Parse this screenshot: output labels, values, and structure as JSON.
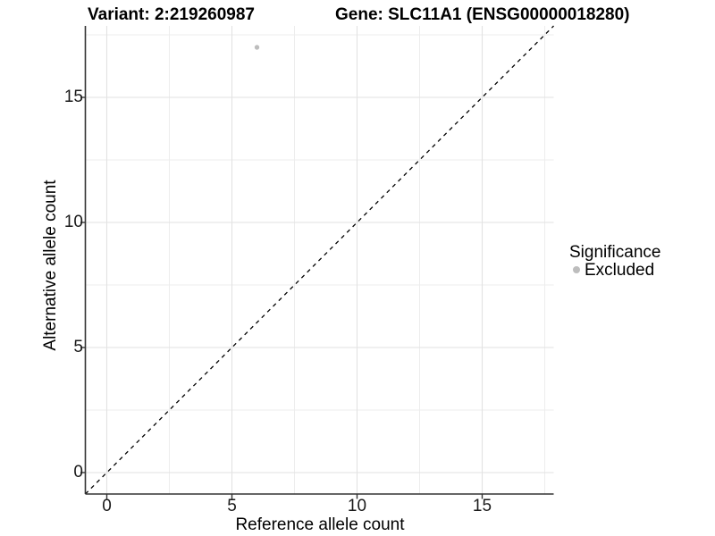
{
  "figure": {
    "title_left": "Variant: 2:219260987",
    "title_right": "Gene: SLC11A1 (ENSG00000018280)"
  },
  "chart_data": {
    "type": "scatter",
    "title_left": "Variant: 2:219260987",
    "title_right": "Gene: SLC11A1 (ENSG00000018280)",
    "xlabel": "Reference allele count",
    "ylabel": "Alternative allele count",
    "xlim": [
      -0.857,
      17.857
    ],
    "ylim": [
      -0.857,
      17.857
    ],
    "x_ticks": [
      0,
      5,
      10,
      15
    ],
    "y_ticks": [
      0,
      5,
      10,
      15
    ],
    "x_minor_ticks": [
      2.5,
      7.5,
      12.5,
      17.5
    ],
    "y_minor_ticks": [
      2.5,
      7.5,
      12.5,
      17.5
    ],
    "grid": "major-and-minor",
    "points": [
      {
        "x": 6,
        "y": 17,
        "series": "Excluded"
      }
    ],
    "reference_line": {
      "kind": "identity y=x",
      "style": "dashed",
      "color": "#000000"
    },
    "legend": {
      "title": "Significance",
      "position": "right",
      "entries": [
        {
          "label": "Excluded",
          "marker": "point",
          "color": "#bdbdbd"
        }
      ]
    },
    "colors": {
      "point": "#bdbdbd",
      "grid_major": "#e2e2e2",
      "grid_minor": "#ededed",
      "axis_line": "#333333",
      "tick_mark": "#333333",
      "dashed_line": "#000000",
      "background": "#ffffff"
    }
  }
}
